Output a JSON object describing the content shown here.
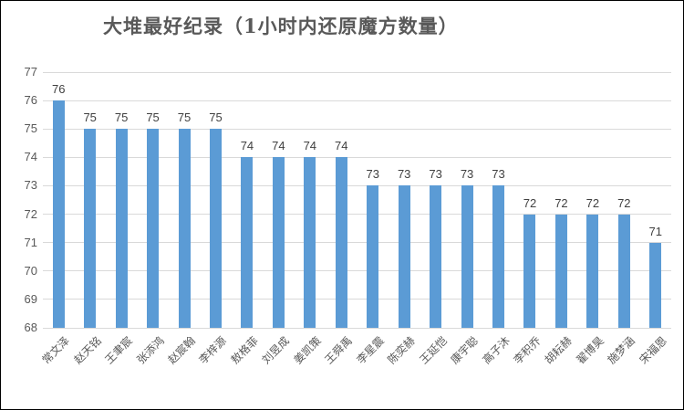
{
  "chart_data": {
    "type": "bar",
    "title": "大堆最好纪录（1小时内还原魔方数量）",
    "categories": [
      "常文泽",
      "赵天铭",
      "王聿宸",
      "张添鸿",
      "赵宸翰",
      "李梓源",
      "敖格菲",
      "刘昱成",
      "姜凯策",
      "王舜禹",
      "李星震",
      "陈奕赫",
      "王延恺",
      "康宇聪",
      "高子沐",
      "李积乔",
      "胡耘赫",
      "翟博昊",
      "施梦涵",
      "宋福恩"
    ],
    "values": [
      76,
      75,
      75,
      75,
      75,
      75,
      74,
      74,
      74,
      74,
      73,
      73,
      73,
      73,
      73,
      72,
      72,
      72,
      72,
      71
    ],
    "xlabel": "",
    "ylabel": "",
    "ylim": [
      68,
      77
    ],
    "yticks": [
      68,
      69,
      70,
      71,
      72,
      73,
      74,
      75,
      76,
      77
    ],
    "grid": true,
    "legend": "none",
    "data_labels": true,
    "colors": {
      "bar": "#5B9BD5",
      "title": "#595959",
      "tick_label": "#595959",
      "value_label": "#404040",
      "category_label": "#595959",
      "gridline": "#D9D9D9",
      "frame_border": "#000000",
      "background": "#FFFFFF"
    }
  }
}
